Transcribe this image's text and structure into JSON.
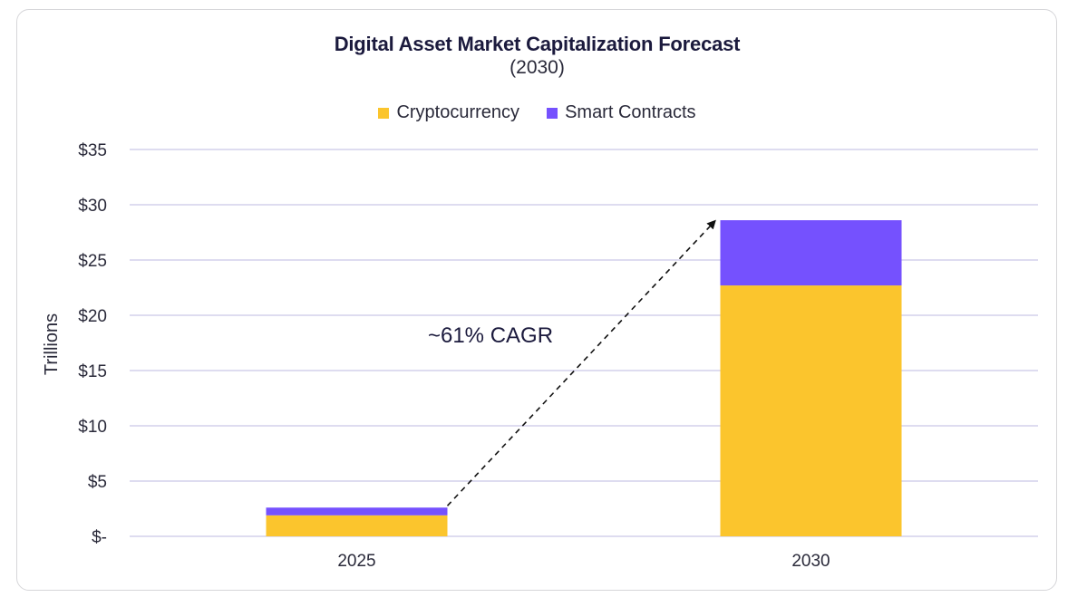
{
  "chart_data": {
    "type": "bar",
    "stacked": true,
    "title": "Digital Asset Market Capitalization Forecast",
    "subtitle": "(2030)",
    "ylabel": "Trillions",
    "xlabel": "",
    "categories": [
      "2025",
      "2030"
    ],
    "series": [
      {
        "name": "Cryptocurrency",
        "color": "#fbc52d",
        "values": [
          1.9,
          22.7
        ]
      },
      {
        "name": "Smart Contracts",
        "color": "#7551fe",
        "values": [
          0.7,
          5.9
        ]
      }
    ],
    "ylim": [
      0,
      35
    ],
    "yticks": [
      0,
      5,
      10,
      15,
      20,
      25,
      30,
      35
    ],
    "ytick_labels": [
      "$-",
      "$5",
      "$10",
      "$15",
      "$20",
      "$25",
      "$30",
      "$35"
    ],
    "grid": true,
    "legend_position": "top-center",
    "annotation": {
      "text": "~61% CAGR",
      "type": "dashed-arrow"
    }
  }
}
